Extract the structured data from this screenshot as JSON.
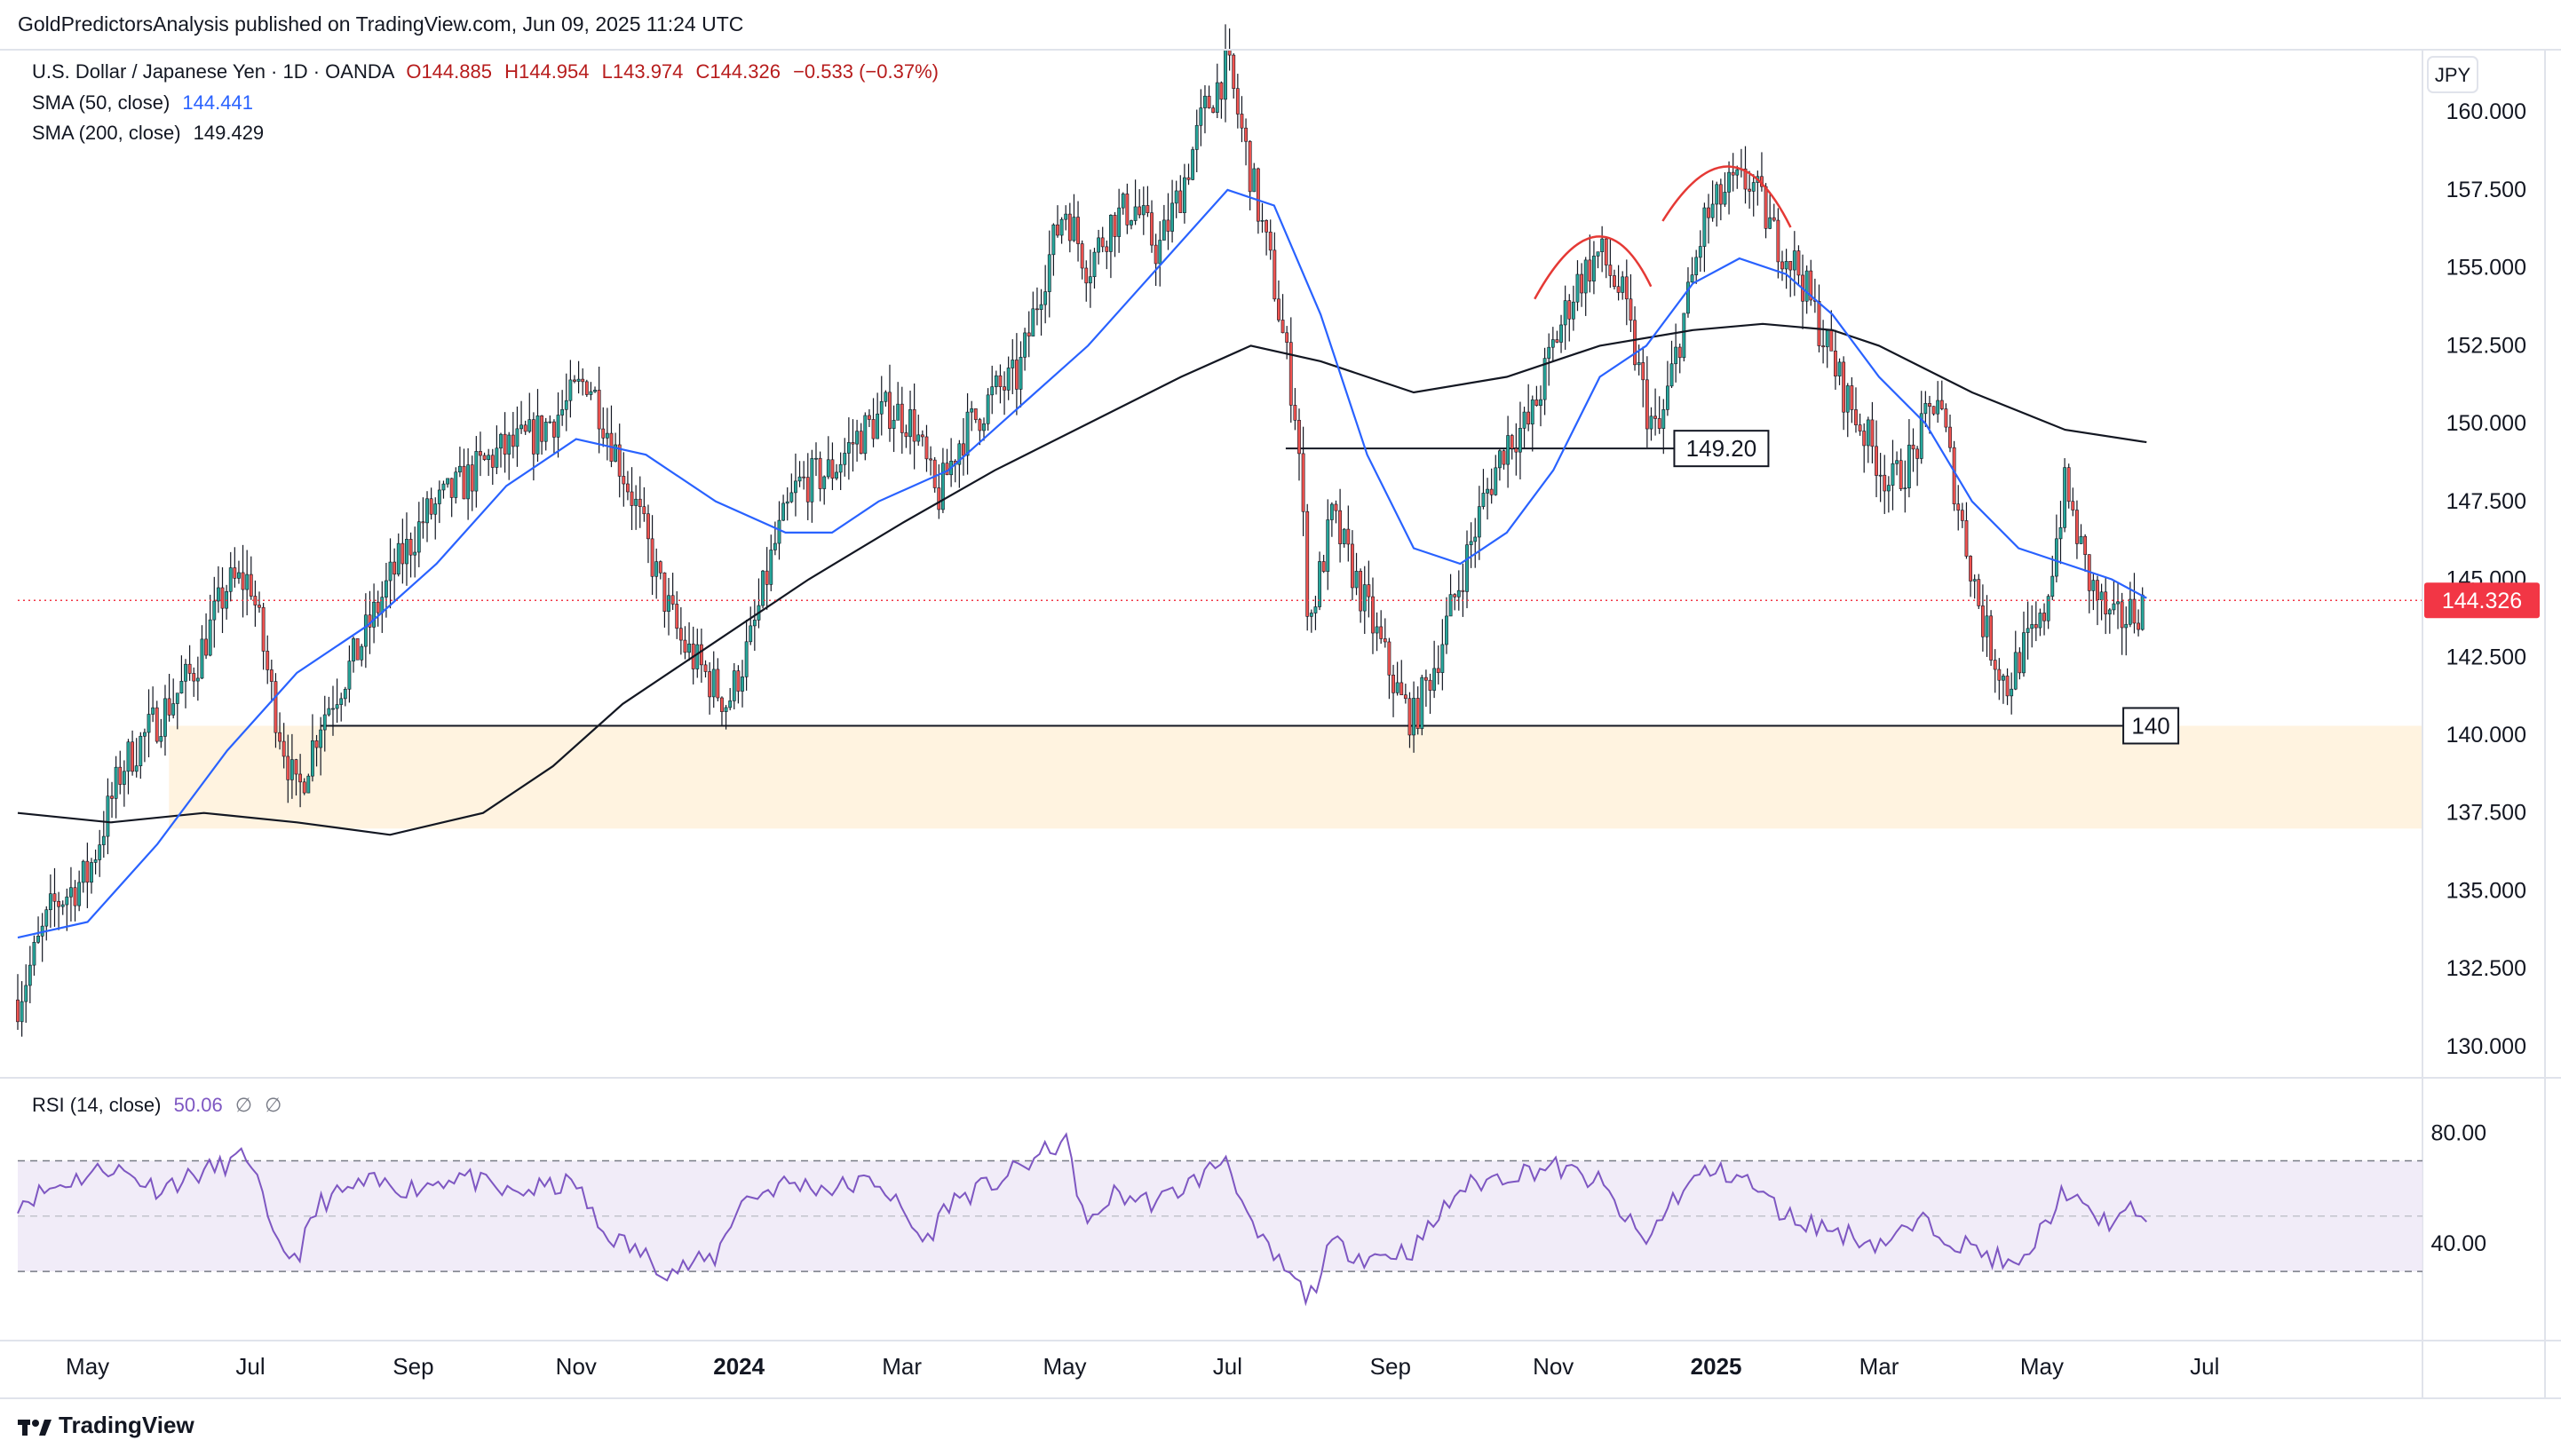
{
  "header": {
    "published_text": "GoldPredictorsAnalysis published on TradingView.com, Jun 09, 2025 11:24 UTC"
  },
  "legend": {
    "symbol_text": "U.S. Dollar / Japanese Yen · 1D · OANDA",
    "open": "O144.885",
    "high": "H144.954",
    "low": "L143.974",
    "close": "C144.326",
    "change": "−0.533 (−0.37%)",
    "sma50_label": "SMA (50, close)",
    "sma50_value": "144.441",
    "sma200_label": "SMA (200, close)",
    "sma200_value": "149.429",
    "rsi_label": "RSI (14, close)",
    "rsi_value": "50.06",
    "rsi_extra1": "∅",
    "rsi_extra2": "∅"
  },
  "currency_label": "JPY",
  "price_tag": "144.326",
  "annotations": {
    "level_149": "149.20",
    "level_140": "140"
  },
  "footer": {
    "brand": "TradingView"
  },
  "colors": {
    "up": "#26a69a",
    "down": "#ef5350",
    "sma50": "#2962ff",
    "sma200": "#131722",
    "rsi": "#7e57c2",
    "support_zone": "#fff3e0",
    "price_tag": "#f23645",
    "arc": "#e53935"
  },
  "chart_data": {
    "type": "candlestick",
    "symbol": "USDJPY",
    "timeframe": "1D",
    "ylim": [
      129,
      162
    ],
    "y_ticks": [
      "160.000",
      "157.500",
      "155.000",
      "152.500",
      "150.000",
      "147.500",
      "145.000",
      "142.500",
      "140.000",
      "137.500",
      "135.000",
      "132.500",
      "130.000"
    ],
    "x_ticks": [
      {
        "label": "May",
        "t": 0.03
      },
      {
        "label": "Jul",
        "t": 0.1
      },
      {
        "label": "Sep",
        "t": 0.17
      },
      {
        "label": "Nov",
        "t": 0.24
      },
      {
        "label": "2024",
        "t": 0.31,
        "bold": true
      },
      {
        "label": "Mar",
        "t": 0.38
      },
      {
        "label": "May",
        "t": 0.45
      },
      {
        "label": "Jul",
        "t": 0.52
      },
      {
        "label": "Sep",
        "t": 0.59
      },
      {
        "label": "Nov",
        "t": 0.66
      },
      {
        "label": "2025",
        "t": 0.73,
        "bold": true
      },
      {
        "label": "Mar",
        "t": 0.8
      },
      {
        "label": "May",
        "t": 0.87
      },
      {
        "label": "Jul",
        "t": 0.94
      }
    ],
    "price_path": [
      [
        0.0,
        131.5
      ],
      [
        0.015,
        134.5
      ],
      [
        0.03,
        135.5
      ],
      [
        0.045,
        139.0
      ],
      [
        0.06,
        140.5
      ],
      [
        0.075,
        142.0
      ],
      [
        0.09,
        144.8
      ],
      [
        0.1,
        145.0
      ],
      [
        0.11,
        141.0
      ],
      [
        0.12,
        138.0
      ],
      [
        0.13,
        140.5
      ],
      [
        0.145,
        142.5
      ],
      [
        0.16,
        145.0
      ],
      [
        0.175,
        147.0
      ],
      [
        0.19,
        148.0
      ],
      [
        0.205,
        149.0
      ],
      [
        0.22,
        149.5
      ],
      [
        0.235,
        150.5
      ],
      [
        0.245,
        151.5
      ],
      [
        0.255,
        149.5
      ],
      [
        0.265,
        147.5
      ],
      [
        0.275,
        145.0
      ],
      [
        0.285,
        143.0
      ],
      [
        0.3,
        141.5
      ],
      [
        0.305,
        141.0
      ],
      [
        0.315,
        143.0
      ],
      [
        0.325,
        146.0
      ],
      [
        0.335,
        148.0
      ],
      [
        0.35,
        148.5
      ],
      [
        0.36,
        149.5
      ],
      [
        0.375,
        150.5
      ],
      [
        0.385,
        150.0
      ],
      [
        0.395,
        147.5
      ],
      [
        0.405,
        149.5
      ],
      [
        0.42,
        151.0
      ],
      [
        0.43,
        151.5
      ],
      [
        0.44,
        154.5
      ],
      [
        0.45,
        157.0
      ],
      [
        0.46,
        155.0
      ],
      [
        0.47,
        156.5
      ],
      [
        0.48,
        157.0
      ],
      [
        0.49,
        155.5
      ],
      [
        0.5,
        157.5
      ],
      [
        0.51,
        160.0
      ],
      [
        0.52,
        161.5
      ],
      [
        0.53,
        158.0
      ],
      [
        0.54,
        154.5
      ],
      [
        0.55,
        150.0
      ],
      [
        0.555,
        143.5
      ],
      [
        0.565,
        147.0
      ],
      [
        0.575,
        145.0
      ],
      [
        0.585,
        143.0
      ],
      [
        0.595,
        141.0
      ],
      [
        0.6,
        140.5
      ],
      [
        0.61,
        142.5
      ],
      [
        0.62,
        145.0
      ],
      [
        0.63,
        147.5
      ],
      [
        0.64,
        149.5
      ],
      [
        0.65,
        150.0
      ],
      [
        0.66,
        152.5
      ],
      [
        0.67,
        154.5
      ],
      [
        0.68,
        155.5
      ],
      [
        0.69,
        154.0
      ],
      [
        0.7,
        150.5
      ],
      [
        0.705,
        149.5
      ],
      [
        0.715,
        153.0
      ],
      [
        0.725,
        156.5
      ],
      [
        0.735,
        157.5
      ],
      [
        0.745,
        157.8
      ],
      [
        0.755,
        156.0
      ],
      [
        0.765,
        155.0
      ],
      [
        0.775,
        153.0
      ],
      [
        0.785,
        151.0
      ],
      [
        0.795,
        149.5
      ],
      [
        0.805,
        148.0
      ],
      [
        0.815,
        149.0
      ],
      [
        0.825,
        151.0
      ],
      [
        0.835,
        147.0
      ],
      [
        0.845,
        143.5
      ],
      [
        0.855,
        141.5
      ],
      [
        0.86,
        142.5
      ],
      [
        0.87,
        143.5
      ],
      [
        0.88,
        148.0
      ],
      [
        0.89,
        145.0
      ],
      [
        0.9,
        143.5
      ],
      [
        0.91,
        144.0
      ],
      [
        0.915,
        144.3
      ]
    ],
    "sma50_path": [
      [
        0.0,
        133.5
      ],
      [
        0.03,
        134.0
      ],
      [
        0.06,
        136.5
      ],
      [
        0.09,
        139.5
      ],
      [
        0.12,
        142.0
      ],
      [
        0.15,
        143.5
      ],
      [
        0.18,
        145.5
      ],
      [
        0.21,
        148.0
      ],
      [
        0.24,
        149.5
      ],
      [
        0.27,
        149.0
      ],
      [
        0.3,
        147.5
      ],
      [
        0.33,
        146.5
      ],
      [
        0.35,
        146.5
      ],
      [
        0.37,
        147.5
      ],
      [
        0.4,
        148.5
      ],
      [
        0.43,
        150.5
      ],
      [
        0.46,
        152.5
      ],
      [
        0.49,
        155.0
      ],
      [
        0.52,
        157.5
      ],
      [
        0.54,
        157.0
      ],
      [
        0.56,
        153.5
      ],
      [
        0.58,
        149.0
      ],
      [
        0.6,
        146.0
      ],
      [
        0.62,
        145.5
      ],
      [
        0.64,
        146.5
      ],
      [
        0.66,
        148.5
      ],
      [
        0.68,
        151.5
      ],
      [
        0.7,
        152.5
      ],
      [
        0.72,
        154.5
      ],
      [
        0.74,
        155.3
      ],
      [
        0.76,
        154.8
      ],
      [
        0.78,
        153.5
      ],
      [
        0.8,
        151.5
      ],
      [
        0.82,
        150.0
      ],
      [
        0.84,
        147.5
      ],
      [
        0.86,
        146.0
      ],
      [
        0.88,
        145.5
      ],
      [
        0.9,
        145.0
      ],
      [
        0.915,
        144.4
      ]
    ],
    "sma200_path": [
      [
        0.0,
        137.5
      ],
      [
        0.04,
        137.2
      ],
      [
        0.08,
        137.5
      ],
      [
        0.12,
        137.2
      ],
      [
        0.16,
        136.8
      ],
      [
        0.2,
        137.5
      ],
      [
        0.23,
        139.0
      ],
      [
        0.26,
        141.0
      ],
      [
        0.3,
        143.0
      ],
      [
        0.34,
        145.0
      ],
      [
        0.38,
        146.8
      ],
      [
        0.42,
        148.5
      ],
      [
        0.46,
        150.0
      ],
      [
        0.5,
        151.5
      ],
      [
        0.53,
        152.5
      ],
      [
        0.56,
        152.0
      ],
      [
        0.6,
        151.0
      ],
      [
        0.64,
        151.5
      ],
      [
        0.68,
        152.5
      ],
      [
        0.72,
        153.0
      ],
      [
        0.75,
        153.2
      ],
      [
        0.78,
        153.0
      ],
      [
        0.8,
        152.5
      ],
      [
        0.84,
        151.0
      ],
      [
        0.88,
        149.8
      ],
      [
        0.915,
        149.4
      ]
    ],
    "rsi": {
      "ticks": [
        "80.00",
        "40.00"
      ],
      "overbought": 70,
      "oversold": 30,
      "mid": 50,
      "path": [
        [
          0.0,
          55
        ],
        [
          0.02,
          62
        ],
        [
          0.04,
          68
        ],
        [
          0.06,
          60
        ],
        [
          0.08,
          66
        ],
        [
          0.1,
          72
        ],
        [
          0.11,
          40
        ],
        [
          0.12,
          35
        ],
        [
          0.13,
          55
        ],
        [
          0.15,
          62
        ],
        [
          0.17,
          60
        ],
        [
          0.19,
          65
        ],
        [
          0.21,
          58
        ],
        [
          0.24,
          62
        ],
        [
          0.25,
          45
        ],
        [
          0.265,
          38
        ],
        [
          0.28,
          30
        ],
        [
          0.3,
          35
        ],
        [
          0.31,
          55
        ],
        [
          0.33,
          62
        ],
        [
          0.35,
          60
        ],
        [
          0.37,
          63
        ],
        [
          0.39,
          40
        ],
        [
          0.4,
          55
        ],
        [
          0.42,
          62
        ],
        [
          0.44,
          72
        ],
        [
          0.45,
          78
        ],
        [
          0.46,
          45
        ],
        [
          0.47,
          58
        ],
        [
          0.49,
          55
        ],
        [
          0.51,
          65
        ],
        [
          0.52,
          72
        ],
        [
          0.53,
          45
        ],
        [
          0.545,
          30
        ],
        [
          0.555,
          20
        ],
        [
          0.565,
          40
        ],
        [
          0.58,
          35
        ],
        [
          0.6,
          38
        ],
        [
          0.62,
          60
        ],
        [
          0.64,
          65
        ],
        [
          0.66,
          68
        ],
        [
          0.68,
          62
        ],
        [
          0.69,
          50
        ],
        [
          0.7,
          40
        ],
        [
          0.71,
          55
        ],
        [
          0.725,
          66
        ],
        [
          0.74,
          65
        ],
        [
          0.76,
          50
        ],
        [
          0.78,
          45
        ],
        [
          0.8,
          40
        ],
        [
          0.82,
          48
        ],
        [
          0.835,
          40
        ],
        [
          0.85,
          35
        ],
        [
          0.86,
          30
        ],
        [
          0.87,
          45
        ],
        [
          0.88,
          60
        ],
        [
          0.89,
          50
        ],
        [
          0.9,
          48
        ],
        [
          0.91,
          52
        ],
        [
          0.915,
          50
        ]
      ]
    }
  }
}
